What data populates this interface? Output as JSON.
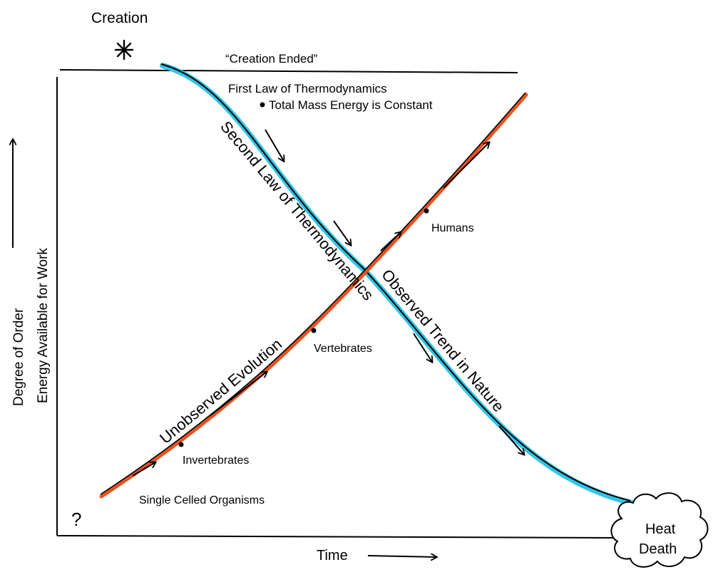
{
  "labels": {
    "creation": "Creation",
    "creation_ended": "“Creation Ended”",
    "first_law": "First Law of Thermodynamics",
    "mass_energy": "Total Mass Energy is Constant",
    "second_law": "Second Law of Thermodynamics",
    "observed_trend": "Observed Trend in Nature",
    "unobserved_evolution": "Unobserved  Evolution",
    "humans": "Humans",
    "vertebrates": "Vertebrates",
    "invertebrates": "Invertebrates",
    "single_celled": "Single Celled Organisms",
    "question": "?",
    "heat_death_line1": "Heat",
    "heat_death_line2": "Death",
    "time_axis": "Time",
    "y_axis_line1": "Degree of Order",
    "y_axis_line2": "Energy  Available for Work"
  },
  "colors": {
    "decay_highlight": "#33c4e6",
    "evolution_highlight": "#e8521e",
    "ink": "#000000"
  },
  "icons": {
    "creation": "asterisk-icon",
    "heat_death": "cloud-icon"
  }
}
